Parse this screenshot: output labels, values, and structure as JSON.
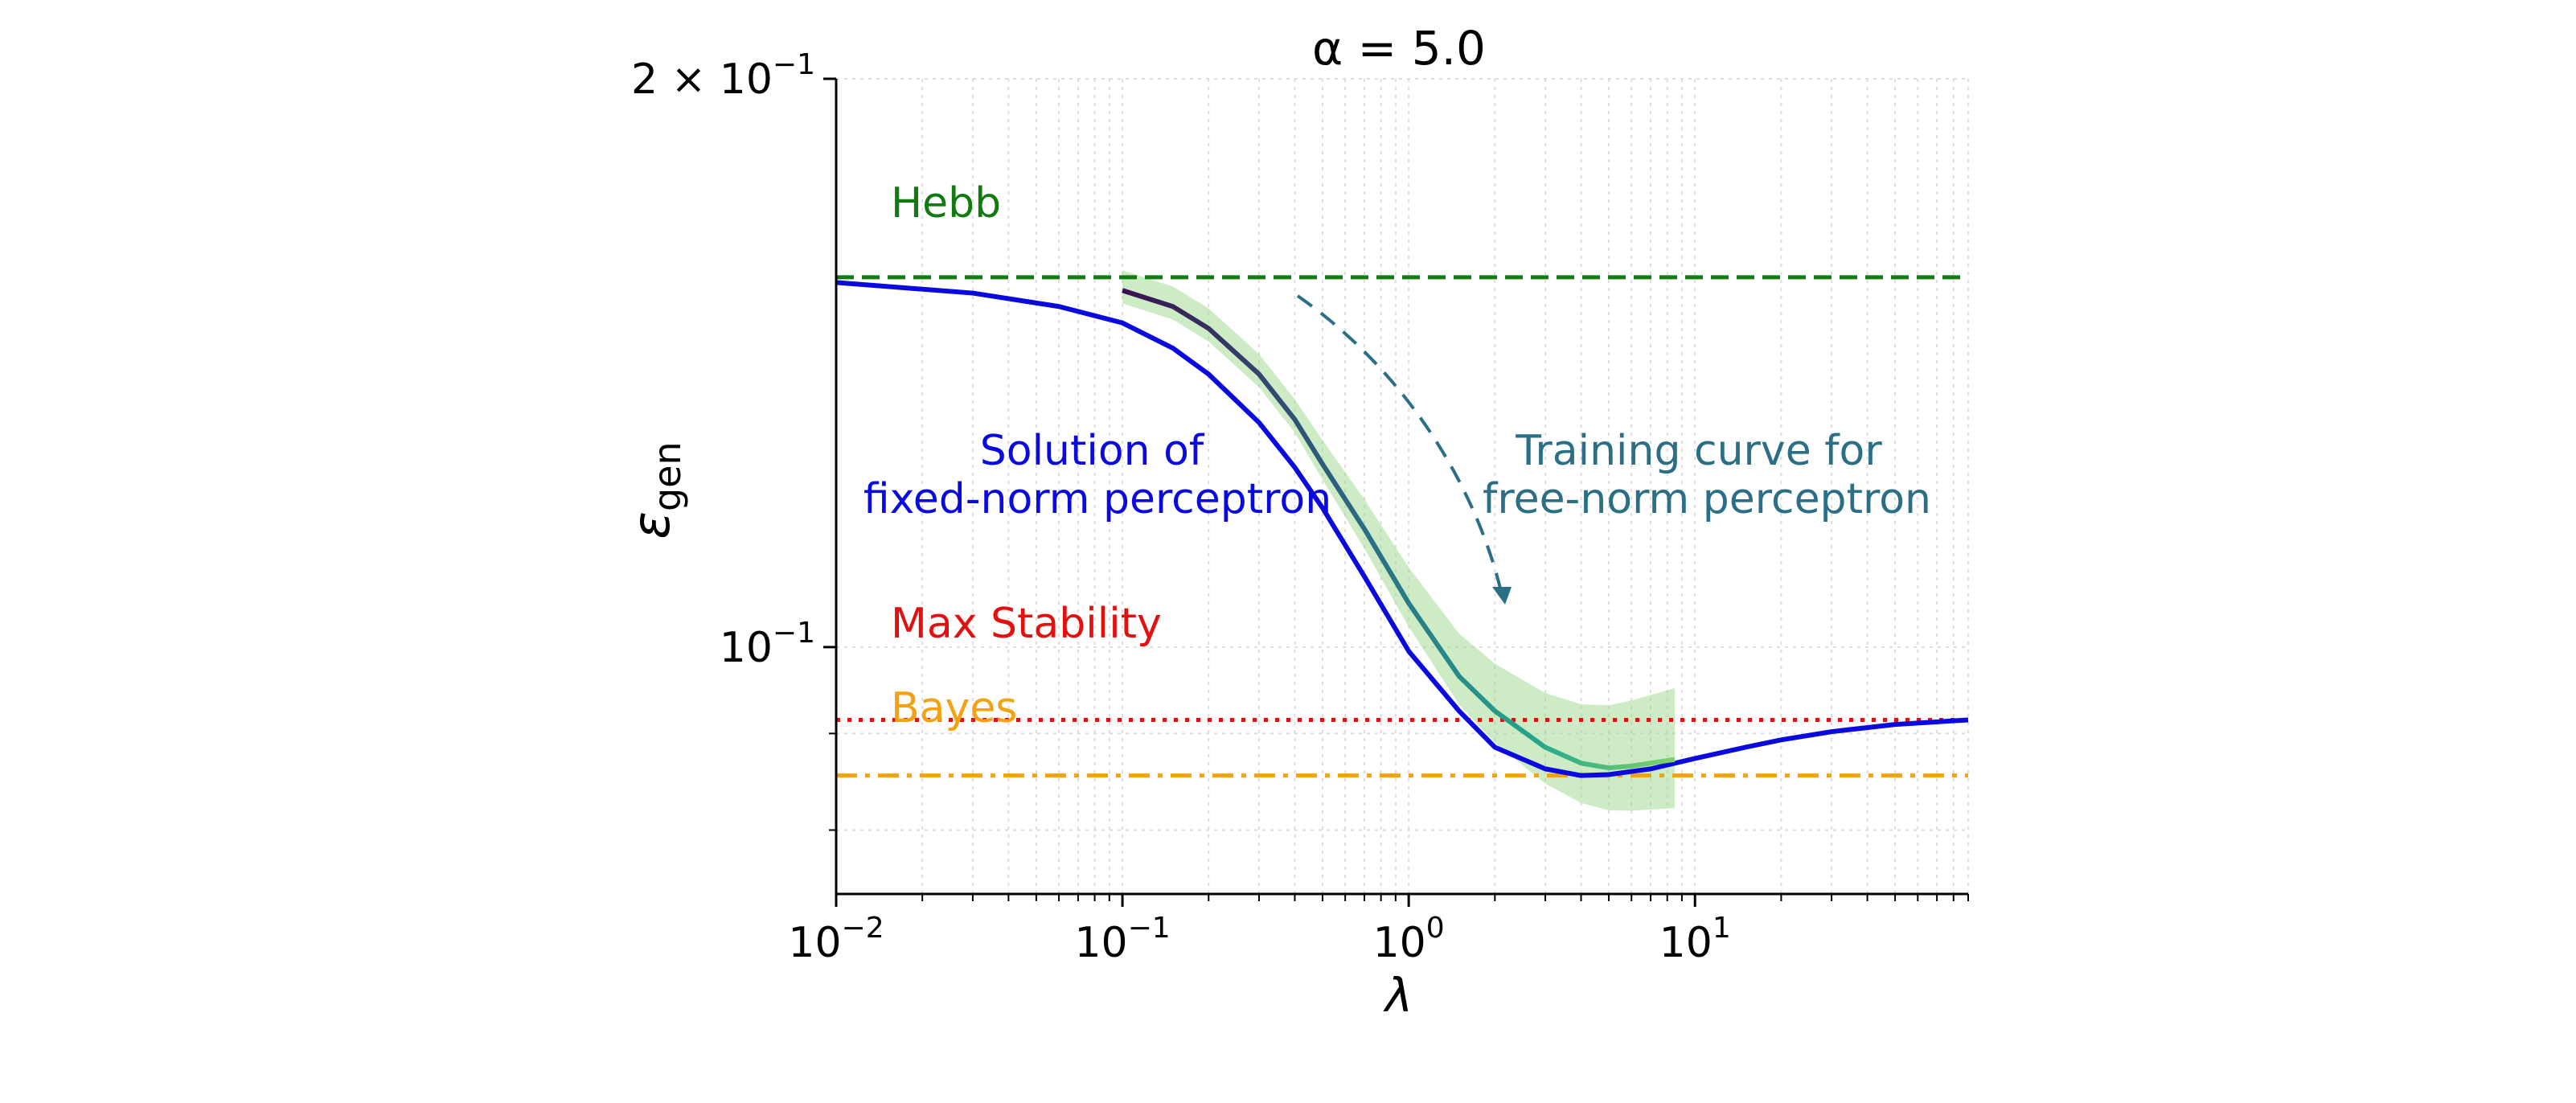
{
  "chart_data": {
    "type": "line",
    "title": "α = 5.0",
    "xlabel": "λ",
    "ylabel": "ε",
    "ylabel_sub": "gen",
    "xscale": "log",
    "yscale": "log",
    "xlim": [
      0.01,
      90
    ],
    "ylim": [
      0.074,
      0.2
    ],
    "grid": true,
    "x_ticks": [
      {
        "value": 0.01,
        "base": "10",
        "exp": "−2"
      },
      {
        "value": 0.1,
        "base": "10",
        "exp": "−1"
      },
      {
        "value": 1,
        "base": "10",
        "exp": "0"
      },
      {
        "value": 10,
        "base": "10",
        "exp": "1"
      }
    ],
    "y_ticks": [
      {
        "value": 0.2,
        "base": "2 × 10",
        "exp": "−1"
      },
      {
        "value": 0.1,
        "base": "10",
        "exp": "−1"
      }
    ],
    "colors": {
      "fixed_norm": "#0a0adf",
      "hebb": "#117a11",
      "max_stability": "#e31010",
      "bayes": "#f5a211",
      "training": "#2a6f86",
      "training_band": "#9bd88a"
    },
    "hlines": [
      {
        "name": "Hebb",
        "y": 0.157,
        "style": "dashed",
        "color": "#117a11"
      },
      {
        "name": "Max Stability",
        "y": 0.0915,
        "style": "dotted",
        "color": "#e31010"
      },
      {
        "name": "Bayes",
        "y": 0.0855,
        "style": "dashdot",
        "color": "#f5a211"
      }
    ],
    "series": [
      {
        "name": "Solution of fixed-norm perceptron",
        "color": "#0a0adf",
        "x": [
          0.01,
          0.03,
          0.06,
          0.1,
          0.15,
          0.2,
          0.3,
          0.4,
          0.5,
          0.7,
          1.0,
          1.5,
          2.0,
          3.0,
          4.0,
          5.0,
          7.0,
          10,
          15,
          20,
          30,
          50,
          90
        ],
        "y": [
          0.156,
          0.154,
          0.1515,
          0.1485,
          0.144,
          0.1395,
          0.1315,
          0.1245,
          0.1185,
          0.109,
          0.0995,
          0.0925,
          0.0885,
          0.0862,
          0.0855,
          0.0856,
          0.0862,
          0.0873,
          0.0885,
          0.0893,
          0.0902,
          0.091,
          0.0915
        ]
      },
      {
        "name": "Training curve for free-norm perceptron",
        "color": "#2a6f86",
        "x": [
          0.1,
          0.15,
          0.2,
          0.3,
          0.4,
          0.5,
          0.7,
          1.0,
          1.5,
          2.0,
          3.0,
          4.0,
          5.0,
          6.0,
          8.5
        ],
        "y": [
          0.1545,
          0.1515,
          0.1475,
          0.1395,
          0.132,
          0.125,
          0.1155,
          0.1055,
          0.0965,
          0.0925,
          0.0885,
          0.0868,
          0.0863,
          0.0865,
          0.0872
        ]
      }
    ],
    "annotations": [
      {
        "text": "Hebb"
      },
      {
        "text": "Max Stability"
      },
      {
        "text": "Bayes"
      },
      {
        "text": "Solution of"
      },
      {
        "text": "fixed-norm perceptron"
      },
      {
        "text": "Training curve for"
      },
      {
        "text": "free-norm perceptron"
      }
    ]
  }
}
